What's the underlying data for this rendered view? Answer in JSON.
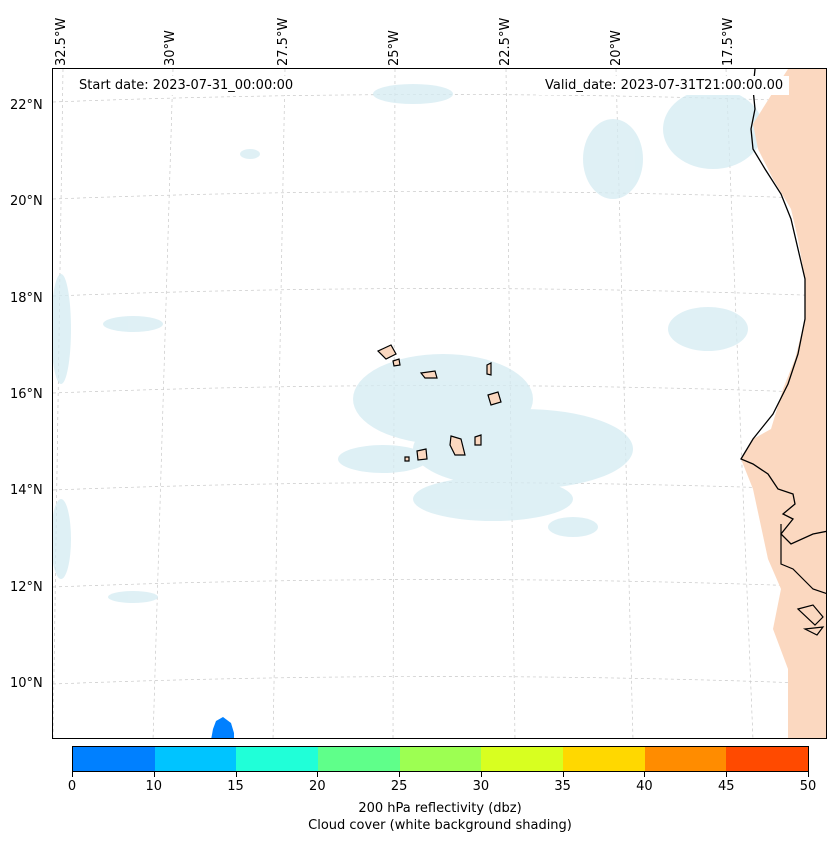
{
  "header": {
    "start_date": "Start date: 2023-07-31_00:00:00",
    "valid_date": "Valid_date: 2023-07-31T21:00:00.00"
  },
  "longitude_labels": [
    "32.5°W",
    "30°W",
    "27.5°W",
    "25°W",
    "22.5°W",
    "20°W",
    "17.5°W"
  ],
  "latitude_labels": [
    "22°N",
    "20°N",
    "18°N",
    "16°N",
    "14°N",
    "12°N",
    "10°N"
  ],
  "colorbar": {
    "ticks": [
      "0",
      "10",
      "15",
      "20",
      "25",
      "30",
      "35",
      "40",
      "45",
      "50"
    ],
    "colors": [
      "#0080ff",
      "#00c4ff",
      "#20ffd8",
      "#5fff8a",
      "#9dff52",
      "#d8ff20",
      "#ffd800",
      "#ff8c00",
      "#ff4a00"
    ],
    "label": "200 hPa reflectivity (dbz)",
    "sublabel": "Cloud cover (white background shading)"
  },
  "style": {
    "land_shading": "#fbd8c0",
    "cloud_shading": "#d4ebf2",
    "coastline": "#000000",
    "grid": "#c8c8c8"
  }
}
